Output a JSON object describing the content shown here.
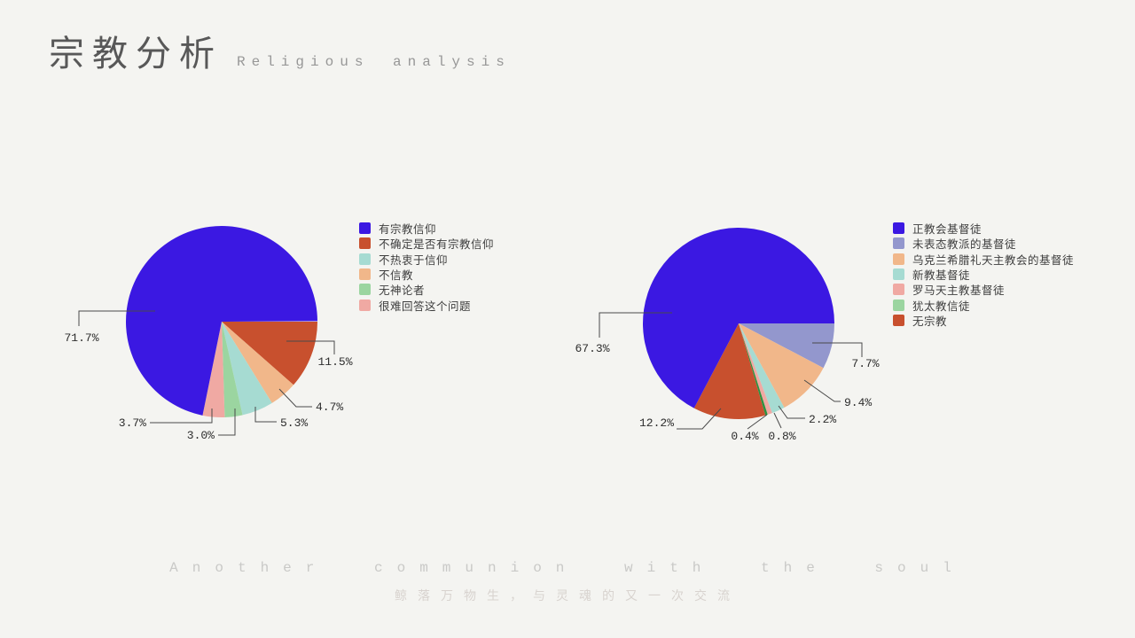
{
  "header": {
    "title": "宗教分析",
    "subtitle": "Religious analysis"
  },
  "footer": {
    "line_en": "Another communion with the soul",
    "line_zh": "鲸落万物生，与灵魂的又一次交流"
  },
  "colors": {
    "background": "#f4f4f1",
    "leader_line": "#4a4a4a",
    "label_text": "#2d2d2d",
    "legend_text": "#3e3e3e"
  },
  "chart_data": [
    {
      "type": "pie",
      "title": "",
      "legend_position": "right",
      "start_angle_deg": 0,
      "direction": "clockwise",
      "value_suffix": "%",
      "slices": [
        {
          "label": "有宗教信仰",
          "value": 71.7,
          "color": "#3b18e2"
        },
        {
          "label": "不确定是否有宗教信仰",
          "value": 11.5,
          "color": "#c8502e"
        },
        {
          "label": "不热衷于信仰",
          "value": 5.3,
          "color": "#a6dbd2"
        },
        {
          "label": "不信教",
          "value": 4.7,
          "color": "#f1b78a"
        },
        {
          "label": "无神论者",
          "value": 3.0,
          "color": "#9bd5a0"
        },
        {
          "label": "很难回答这个问题",
          "value": 3.7,
          "color": "#f0a9a3"
        }
      ],
      "draw_order": [
        1,
        3,
        2,
        4,
        5,
        0
      ]
    },
    {
      "type": "pie",
      "title": "",
      "legend_position": "right",
      "start_angle_deg": 0,
      "direction": "clockwise",
      "value_suffix": "%",
      "slices": [
        {
          "label": "正教会基督徒",
          "value": 67.3,
          "color": "#3b18e2"
        },
        {
          "label": "未表态教派的基督徒",
          "value": 7.7,
          "color": "#9397cd"
        },
        {
          "label": "乌克兰希腊礼天主教会的基督徒",
          "value": 9.4,
          "color": "#f1b78a"
        },
        {
          "label": "新教基督徒",
          "value": 2.2,
          "color": "#a6dbd2"
        },
        {
          "label": "罗马天主教基督徒",
          "value": 0.8,
          "color": "#f0a9a3"
        },
        {
          "label": "犹太教信徒",
          "value": 0.4,
          "color": "#9bd5a0",
          "pie_color": "#2e9140"
        },
        {
          "label": "无宗教",
          "value": 12.2,
          "color": "#c8502e"
        }
      ],
      "draw_order": [
        1,
        2,
        3,
        4,
        5,
        6,
        0
      ]
    }
  ]
}
